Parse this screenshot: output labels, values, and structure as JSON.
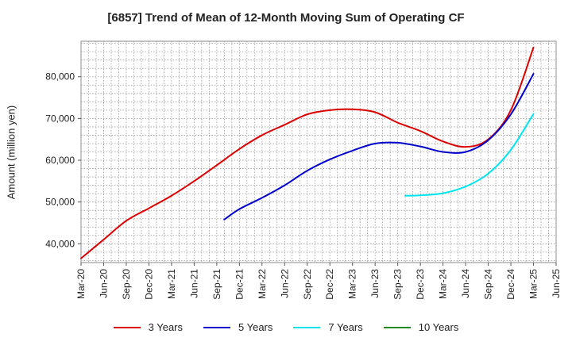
{
  "chart_data": {
    "type": "line",
    "title": "[6857]  Trend of Mean of 12-Month Moving Sum of Operating CF",
    "ylabel": "Amount (million yen)",
    "xlabel": "",
    "ylim": [
      35500,
      88500
    ],
    "yticks": [
      40000,
      50000,
      60000,
      70000,
      80000
    ],
    "ytick_labels": [
      "40,000",
      "50,000",
      "60,000",
      "70,000",
      "80,000"
    ],
    "x_labels": [
      "Mar-20",
      "Jun-20",
      "Sep-20",
      "Dec-20",
      "Mar-21",
      "Jun-21",
      "Sep-21",
      "Dec-21",
      "Mar-22",
      "Jun-22",
      "Sep-22",
      "Dec-22",
      "Mar-23",
      "Jun-23",
      "Sep-23",
      "Dec-23",
      "Mar-24",
      "Jun-24",
      "Sep-24",
      "Dec-24",
      "Mar-25",
      "Jun-25"
    ],
    "grid": true,
    "legend_position": "bottom",
    "series": [
      {
        "name": "3 Years",
        "color": "#dd0000",
        "points": [
          [
            0,
            36500
          ],
          [
            1,
            41000
          ],
          [
            2,
            45500
          ],
          [
            3,
            48500
          ],
          [
            4,
            51500
          ],
          [
            5,
            55000
          ],
          [
            6,
            58800
          ],
          [
            7,
            62700
          ],
          [
            8,
            66000
          ],
          [
            9,
            68500
          ],
          [
            10,
            71000
          ],
          [
            11,
            72000
          ],
          [
            12,
            72200
          ],
          [
            13,
            71500
          ],
          [
            14,
            69000
          ],
          [
            15,
            67000
          ],
          [
            16,
            64500
          ],
          [
            17,
            63200
          ],
          [
            18,
            65000
          ],
          [
            19,
            72000
          ],
          [
            20,
            87000
          ]
        ]
      },
      {
        "name": "5 Years",
        "color": "#0000cc",
        "points": [
          [
            6.33,
            45800
          ],
          [
            7,
            48300
          ],
          [
            8,
            51000
          ],
          [
            9,
            54000
          ],
          [
            10,
            57500
          ],
          [
            11,
            60200
          ],
          [
            12,
            62300
          ],
          [
            13,
            64000
          ],
          [
            14,
            64200
          ],
          [
            15,
            63300
          ],
          [
            16,
            62000
          ],
          [
            17,
            62000
          ],
          [
            18,
            64800
          ],
          [
            19,
            71000
          ],
          [
            20,
            80700
          ]
        ]
      },
      {
        "name": "7 Years",
        "color": "#00e5ee",
        "points": [
          [
            14.33,
            51500
          ],
          [
            15,
            51600
          ],
          [
            16,
            52100
          ],
          [
            17,
            53700
          ],
          [
            18,
            56800
          ],
          [
            19,
            62500
          ],
          [
            20,
            71100
          ]
        ]
      },
      {
        "name": "10 Years",
        "color": "#228b22",
        "points": []
      }
    ]
  }
}
